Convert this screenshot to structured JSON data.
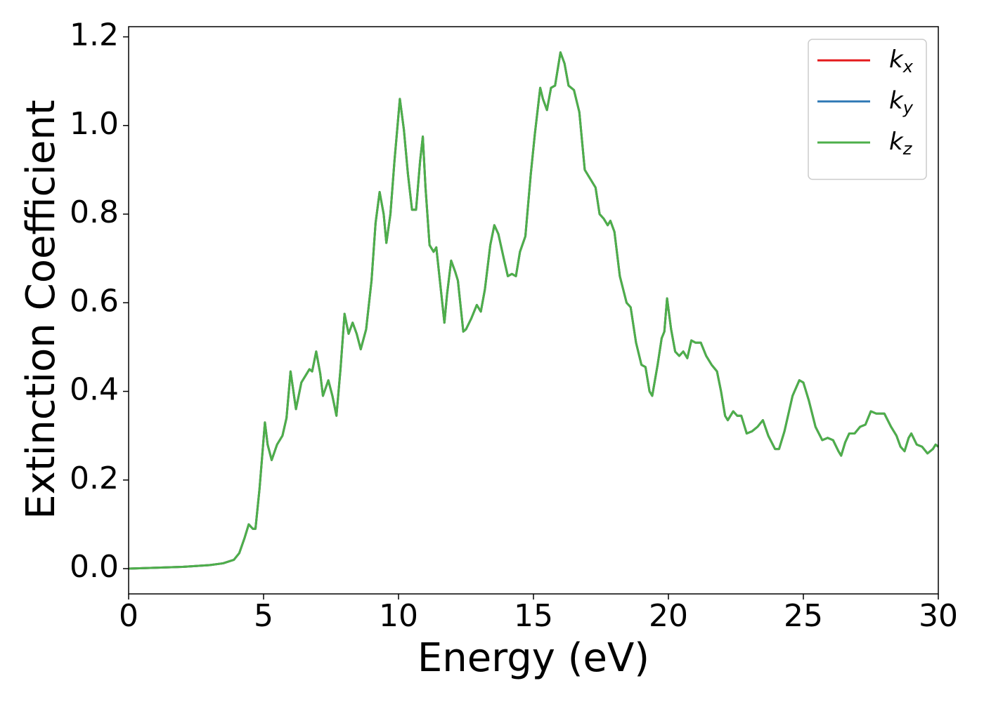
{
  "chart_data": {
    "type": "line",
    "xlabel": "Energy (eV)",
    "ylabel": "Extinction Coefficient",
    "xlim": [
      0,
      30
    ],
    "ylim": [
      -0.057,
      1.223
    ],
    "xticks": [
      0,
      5,
      10,
      15,
      20,
      25,
      30
    ],
    "yticks": [
      {
        "value": 0,
        "label": "0.0"
      },
      0.2,
      0.4,
      0.6,
      0.8,
      {
        "value": 1,
        "label": "1.0"
      },
      1.2
    ],
    "legend": "upper right",
    "x": [
      0,
      1,
      2,
      3,
      3.5,
      3.9,
      4.1,
      4.3,
      4.45,
      4.6,
      4.7,
      4.85,
      5.05,
      5.15,
      5.3,
      5.5,
      5.7,
      5.85,
      6.0,
      6.2,
      6.4,
      6.55,
      6.7,
      6.8,
      6.95,
      7.1,
      7.2,
      7.4,
      7.55,
      7.7,
      7.85,
      8.0,
      8.15,
      8.3,
      8.45,
      8.6,
      8.8,
      9.0,
      9.15,
      9.3,
      9.45,
      9.55,
      9.7,
      9.85,
      10.05,
      10.2,
      10.35,
      10.5,
      10.65,
      10.8,
      10.9,
      11.0,
      11.15,
      11.3,
      11.4,
      11.55,
      11.7,
      11.8,
      11.95,
      12.1,
      12.2,
      12.4,
      12.5,
      12.7,
      12.9,
      13.05,
      13.2,
      13.4,
      13.55,
      13.7,
      13.9,
      14.05,
      14.2,
      14.35,
      14.5,
      14.7,
      14.9,
      15.05,
      15.25,
      15.35,
      15.5,
      15.65,
      15.8,
      16.0,
      16.15,
      16.3,
      16.5,
      16.7,
      16.9,
      17.1,
      17.3,
      17.45,
      17.6,
      17.75,
      17.85,
      18.0,
      18.2,
      18.45,
      18.6,
      18.8,
      19.0,
      19.15,
      19.3,
      19.4,
      19.6,
      19.75,
      19.85,
      19.95,
      20.1,
      20.25,
      20.4,
      20.55,
      20.7,
      20.85,
      21.0,
      21.2,
      21.4,
      21.6,
      21.8,
      21.95,
      22.1,
      22.2,
      22.4,
      22.55,
      22.7,
      22.9,
      23.1,
      23.3,
      23.5,
      23.7,
      23.95,
      24.1,
      24.3,
      24.6,
      24.85,
      25.0,
      25.2,
      25.45,
      25.7,
      25.9,
      26.1,
      26.3,
      26.4,
      26.55,
      26.7,
      26.9,
      27.1,
      27.3,
      27.5,
      27.7,
      27.85,
      28.0,
      28.25,
      28.45,
      28.6,
      28.75,
      28.9,
      29.0,
      29.2,
      29.4,
      29.6,
      29.8,
      29.9,
      30.0
    ],
    "series": [
      {
        "name": "k_x",
        "color": "#e41a1c",
        "values": [
          0,
          0.002,
          0.004,
          0.008,
          0.012,
          0.02,
          0.035,
          0.07,
          0.1,
          0.09,
          0.09,
          0.18,
          0.33,
          0.28,
          0.245,
          0.28,
          0.3,
          0.34,
          0.445,
          0.36,
          0.42,
          0.435,
          0.45,
          0.445,
          0.49,
          0.44,
          0.39,
          0.425,
          0.39,
          0.345,
          0.45,
          0.575,
          0.53,
          0.555,
          0.53,
          0.495,
          0.54,
          0.65,
          0.78,
          0.85,
          0.8,
          0.735,
          0.8,
          0.92,
          1.06,
          0.99,
          0.89,
          0.81,
          0.81,
          0.92,
          0.975,
          0.86,
          0.73,
          0.715,
          0.725,
          0.64,
          0.555,
          0.62,
          0.695,
          0.67,
          0.65,
          0.535,
          0.54,
          0.565,
          0.595,
          0.58,
          0.63,
          0.73,
          0.775,
          0.755,
          0.7,
          0.66,
          0.665,
          0.66,
          0.715,
          0.75,
          0.89,
          0.98,
          1.085,
          1.06,
          1.035,
          1.085,
          1.09,
          1.165,
          1.14,
          1.09,
          1.08,
          1.03,
          0.9,
          0.88,
          0.86,
          0.8,
          0.79,
          0.775,
          0.785,
          0.76,
          0.66,
          0.6,
          0.59,
          0.51,
          0.46,
          0.455,
          0.4,
          0.39,
          0.46,
          0.52,
          0.535,
          0.61,
          0.54,
          0.49,
          0.48,
          0.49,
          0.475,
          0.515,
          0.51,
          0.51,
          0.48,
          0.46,
          0.445,
          0.4,
          0.345,
          0.335,
          0.355,
          0.345,
          0.345,
          0.305,
          0.31,
          0.32,
          0.335,
          0.3,
          0.27,
          0.27,
          0.31,
          0.39,
          0.425,
          0.42,
          0.38,
          0.32,
          0.29,
          0.295,
          0.29,
          0.265,
          0.255,
          0.285,
          0.305,
          0.305,
          0.32,
          0.325,
          0.355,
          0.35,
          0.35,
          0.35,
          0.32,
          0.3,
          0.275,
          0.265,
          0.295,
          0.305,
          0.28,
          0.275,
          0.26,
          0.27,
          0.28,
          0.275
        ]
      },
      {
        "name": "k_y",
        "color": "#377eb8",
        "values": [
          0,
          0.002,
          0.004,
          0.008,
          0.012,
          0.02,
          0.035,
          0.07,
          0.1,
          0.09,
          0.09,
          0.18,
          0.33,
          0.28,
          0.245,
          0.28,
          0.3,
          0.34,
          0.445,
          0.36,
          0.42,
          0.435,
          0.45,
          0.445,
          0.49,
          0.44,
          0.39,
          0.425,
          0.39,
          0.345,
          0.45,
          0.575,
          0.53,
          0.555,
          0.53,
          0.495,
          0.54,
          0.65,
          0.78,
          0.85,
          0.8,
          0.735,
          0.8,
          0.92,
          1.06,
          0.99,
          0.89,
          0.81,
          0.81,
          0.92,
          0.975,
          0.86,
          0.73,
          0.715,
          0.725,
          0.64,
          0.555,
          0.62,
          0.695,
          0.67,
          0.65,
          0.535,
          0.54,
          0.565,
          0.595,
          0.58,
          0.63,
          0.73,
          0.775,
          0.755,
          0.7,
          0.66,
          0.665,
          0.66,
          0.715,
          0.75,
          0.89,
          0.98,
          1.085,
          1.06,
          1.035,
          1.085,
          1.09,
          1.165,
          1.14,
          1.09,
          1.08,
          1.03,
          0.9,
          0.88,
          0.86,
          0.8,
          0.79,
          0.775,
          0.785,
          0.76,
          0.66,
          0.6,
          0.59,
          0.51,
          0.46,
          0.455,
          0.4,
          0.39,
          0.46,
          0.52,
          0.535,
          0.61,
          0.54,
          0.49,
          0.48,
          0.49,
          0.475,
          0.515,
          0.51,
          0.51,
          0.48,
          0.46,
          0.445,
          0.4,
          0.345,
          0.335,
          0.355,
          0.345,
          0.345,
          0.305,
          0.31,
          0.32,
          0.335,
          0.3,
          0.27,
          0.27,
          0.31,
          0.39,
          0.425,
          0.42,
          0.38,
          0.32,
          0.29,
          0.295,
          0.29,
          0.265,
          0.255,
          0.285,
          0.305,
          0.305,
          0.32,
          0.325,
          0.355,
          0.35,
          0.35,
          0.35,
          0.32,
          0.3,
          0.275,
          0.265,
          0.295,
          0.305,
          0.28,
          0.275,
          0.26,
          0.27,
          0.28,
          0.275
        ]
      },
      {
        "name": "k_z",
        "color": "#4daf4a",
        "values": [
          0,
          0.002,
          0.004,
          0.008,
          0.012,
          0.02,
          0.035,
          0.07,
          0.1,
          0.09,
          0.09,
          0.18,
          0.33,
          0.28,
          0.245,
          0.28,
          0.3,
          0.34,
          0.445,
          0.36,
          0.42,
          0.435,
          0.45,
          0.445,
          0.49,
          0.44,
          0.39,
          0.425,
          0.39,
          0.345,
          0.45,
          0.575,
          0.53,
          0.555,
          0.53,
          0.495,
          0.54,
          0.65,
          0.78,
          0.85,
          0.8,
          0.735,
          0.8,
          0.92,
          1.06,
          0.99,
          0.89,
          0.81,
          0.81,
          0.92,
          0.975,
          0.86,
          0.73,
          0.715,
          0.725,
          0.64,
          0.555,
          0.62,
          0.695,
          0.67,
          0.65,
          0.535,
          0.54,
          0.565,
          0.595,
          0.58,
          0.63,
          0.73,
          0.775,
          0.755,
          0.7,
          0.66,
          0.665,
          0.66,
          0.715,
          0.75,
          0.89,
          0.98,
          1.085,
          1.06,
          1.035,
          1.085,
          1.09,
          1.165,
          1.14,
          1.09,
          1.08,
          1.03,
          0.9,
          0.88,
          0.86,
          0.8,
          0.79,
          0.775,
          0.785,
          0.76,
          0.66,
          0.6,
          0.59,
          0.51,
          0.46,
          0.455,
          0.4,
          0.39,
          0.46,
          0.52,
          0.535,
          0.61,
          0.54,
          0.49,
          0.48,
          0.49,
          0.475,
          0.515,
          0.51,
          0.51,
          0.48,
          0.46,
          0.445,
          0.4,
          0.345,
          0.335,
          0.355,
          0.345,
          0.345,
          0.305,
          0.31,
          0.32,
          0.335,
          0.3,
          0.27,
          0.27,
          0.31,
          0.39,
          0.425,
          0.42,
          0.38,
          0.32,
          0.29,
          0.295,
          0.29,
          0.265,
          0.255,
          0.285,
          0.305,
          0.305,
          0.32,
          0.325,
          0.355,
          0.35,
          0.35,
          0.35,
          0.32,
          0.3,
          0.275,
          0.265,
          0.295,
          0.305,
          0.28,
          0.275,
          0.26,
          0.27,
          0.28,
          0.275
        ]
      }
    ]
  }
}
